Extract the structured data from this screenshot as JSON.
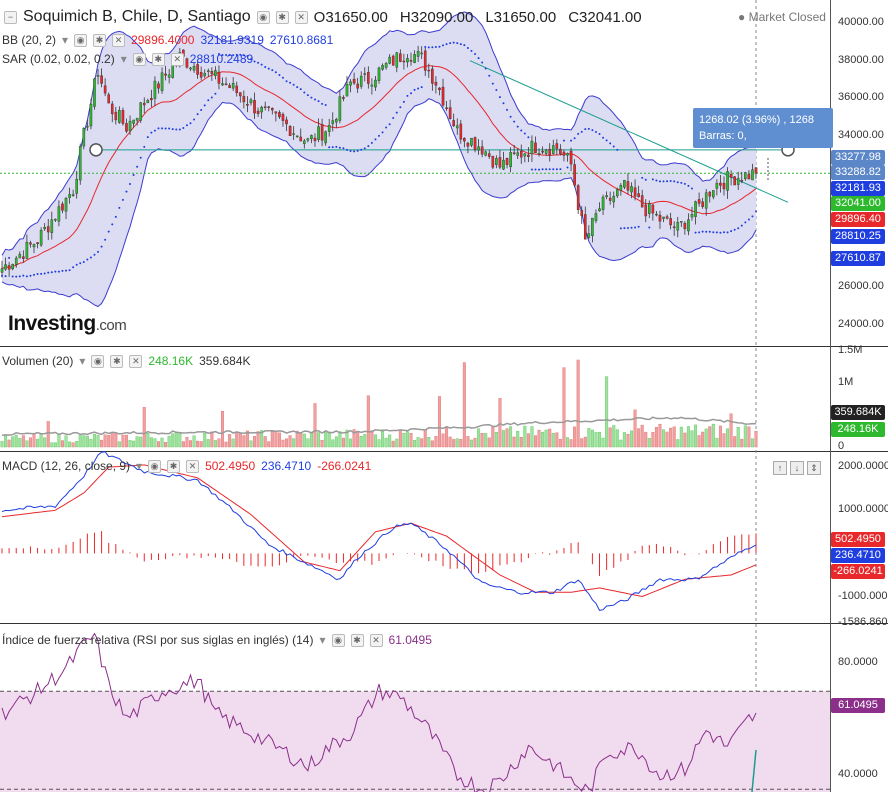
{
  "header": {
    "title": "Soquimich B, Chile, D, Santiago",
    "open": "O31650.00",
    "high": "H32090.00",
    "low": "L31650.00",
    "close": "C32041.00",
    "market_status": "Market Closed"
  },
  "indicators": {
    "bb": {
      "label": "BB (20, 2)",
      "lower": "29896.4000",
      "mid": "32181.9319",
      "upper": "27610.8681"
    },
    "sar": {
      "label": "SAR (0.02, 0.02, 0.2)",
      "value": "28810.2489"
    },
    "volume": {
      "label": "Volumen (20)",
      "v1": "248.16K",
      "v2": "359.684K"
    },
    "macd": {
      "label": "MACD (12, 26, close, 9)",
      "v1": "502.4950",
      "v2": "236.4710",
      "v3": "-266.0241"
    },
    "rsi": {
      "label": "Índice de fuerza relativa (RSI por sus siglas en inglés) (14)",
      "value": "61.0495"
    }
  },
  "tooltip": {
    "line1": "1268.02 (3.96%) , 1268",
    "line2": "Barras: 0,"
  },
  "logo": {
    "main": "Investing",
    "suffix": ".com"
  },
  "axis": {
    "price_ticks": [
      "40000.00",
      "38000.00",
      "36000.00",
      "34000.00",
      "26000.00",
      "24000.00"
    ],
    "price_badges": [
      {
        "text": "33277.98",
        "color": "#5b87c9"
      },
      {
        "text": "33288.82",
        "color": "#5b87c9"
      },
      {
        "text": "32181.93",
        "color": "#1f3ee0"
      },
      {
        "text": "32041.00",
        "color": "#2eb82e"
      },
      {
        "text": "29896.40",
        "color": "#e8282b"
      },
      {
        "text": "28810.25",
        "color": "#1f3ee0"
      },
      {
        "text": "27610.87",
        "color": "#1f3ee0"
      }
    ],
    "vol_ticks": [
      "1.5M",
      "1M",
      "0"
    ],
    "vol_badges": [
      {
        "text": "359.684K",
        "color": "#222"
      },
      {
        "text": "248.16K",
        "color": "#2eb82e"
      }
    ],
    "macd_ticks": [
      "2000.0000",
      "1000.0000",
      "-1000.0000",
      "-1586.8601"
    ],
    "macd_badges": [
      {
        "text": "502.4950",
        "color": "#e8282b"
      },
      {
        "text": "236.4710",
        "color": "#1f3ee0"
      },
      {
        "text": "-266.0241",
        "color": "#e8282b"
      }
    ],
    "rsi_ticks": [
      "80.0000",
      "40.0000"
    ],
    "rsi_badges": [
      {
        "text": "61.0495",
        "color": "#8b2f8b"
      }
    ]
  },
  "colors": {
    "up": "#2eb82e",
    "down": "#e8282b",
    "bb_band": "#3c3ccf",
    "bb_fill": "#dcdcf3",
    "bb_mid": "#e8282b",
    "sar": "#1f3ee0",
    "macd": "#1f3ee0",
    "signal": "#e8282b",
    "rsi": "#8b2f8b",
    "rsi_fill": "#f1dcef",
    "vol_ma": "#999999",
    "trendline": "#1a9e8c"
  },
  "chart_data": {
    "type": "line",
    "price_range": [
      23000,
      41000
    ],
    "macd_range": [
      -1590,
      2350
    ],
    "rsi_range": [
      34,
      94
    ],
    "vol_range": [
      0,
      1500000
    ],
    "close_keypoints": [
      [
        0,
        27000
      ],
      [
        10,
        28500
      ],
      [
        20,
        31200
      ],
      [
        23,
        34000
      ],
      [
        27,
        37500
      ],
      [
        30,
        35600
      ],
      [
        35,
        34500
      ],
      [
        42,
        36300
      ],
      [
        50,
        38200
      ],
      [
        58,
        37300
      ],
      [
        65,
        36500
      ],
      [
        72,
        35400
      ],
      [
        80,
        34600
      ],
      [
        86,
        33700
      ],
      [
        92,
        34500
      ],
      [
        98,
        36800
      ],
      [
        103,
        37000
      ],
      [
        110,
        38000
      ],
      [
        114,
        38500
      ],
      [
        118,
        38100
      ],
      [
        122,
        36900
      ],
      [
        128,
        34300
      ],
      [
        135,
        33400
      ],
      [
        140,
        32400
      ],
      [
        145,
        33000
      ],
      [
        150,
        33500
      ],
      [
        156,
        33400
      ],
      [
        160,
        32500
      ],
      [
        164,
        28400
      ],
      [
        168,
        30200
      ],
      [
        175,
        31300
      ],
      [
        180,
        30300
      ],
      [
        185,
        29600
      ],
      [
        190,
        29100
      ],
      [
        196,
        30300
      ],
      [
        200,
        31400
      ],
      [
        205,
        31800
      ],
      [
        212,
        32041
      ]
    ],
    "macd_keypoints": [
      [
        0,
        1000
      ],
      [
        15,
        1100
      ],
      [
        23,
        1800
      ],
      [
        28,
        2350
      ],
      [
        40,
        1900
      ],
      [
        55,
        1700
      ],
      [
        65,
        1000
      ],
      [
        75,
        200
      ],
      [
        85,
        -200
      ],
      [
        95,
        -600
      ],
      [
        100,
        -100
      ],
      [
        110,
        600
      ],
      [
        115,
        700
      ],
      [
        125,
        100
      ],
      [
        135,
        -700
      ],
      [
        145,
        -900
      ],
      [
        155,
        -900
      ],
      [
        162,
        -600
      ],
      [
        168,
        -1300
      ],
      [
        175,
        -1100
      ],
      [
        185,
        -600
      ],
      [
        195,
        -600
      ],
      [
        205,
        -100
      ],
      [
        212,
        236
      ]
    ],
    "signal_keypoints": [
      [
        0,
        850
      ],
      [
        15,
        1000
      ],
      [
        23,
        1400
      ],
      [
        30,
        2000
      ],
      [
        40,
        2050
      ],
      [
        55,
        1750
      ],
      [
        70,
        900
      ],
      [
        85,
        -200
      ],
      [
        95,
        -400
      ],
      [
        105,
        500
      ],
      [
        115,
        700
      ],
      [
        125,
        400
      ],
      [
        140,
        -500
      ],
      [
        150,
        -900
      ],
      [
        160,
        -900
      ],
      [
        168,
        -800
      ],
      [
        180,
        -1000
      ],
      [
        192,
        -600
      ],
      [
        205,
        -500
      ],
      [
        212,
        -266
      ]
    ],
    "rsi_keypoints": [
      [
        0,
        62
      ],
      [
        10,
        70
      ],
      [
        18,
        78
      ],
      [
        22,
        85
      ],
      [
        26,
        90
      ],
      [
        30,
        72
      ],
      [
        35,
        60
      ],
      [
        45,
        70
      ],
      [
        55,
        74
      ],
      [
        60,
        62
      ],
      [
        70,
        55
      ],
      [
        80,
        48
      ],
      [
        86,
        43
      ],
      [
        92,
        50
      ],
      [
        98,
        55
      ],
      [
        106,
        70
      ],
      [
        112,
        68
      ],
      [
        120,
        56
      ],
      [
        128,
        40
      ],
      [
        135,
        35
      ],
      [
        140,
        38
      ],
      [
        148,
        50
      ],
      [
        155,
        44
      ],
      [
        160,
        38
      ],
      [
        165,
        34
      ],
      [
        170,
        48
      ],
      [
        178,
        50
      ],
      [
        185,
        40
      ],
      [
        192,
        42
      ],
      [
        198,
        56
      ],
      [
        204,
        50
      ],
      [
        210,
        60
      ],
      [
        212,
        61
      ]
    ],
    "volume_peaks": [
      [
        13,
        400000
      ],
      [
        40,
        620000
      ],
      [
        62,
        560000
      ],
      [
        88,
        680000
      ],
      [
        103,
        800000
      ],
      [
        123,
        790000
      ],
      [
        130,
        1320000
      ],
      [
        140,
        760000
      ],
      [
        158,
        1240000
      ],
      [
        162,
        1360000
      ],
      [
        170,
        1100000
      ],
      [
        178,
        580000
      ],
      [
        205,
        520000
      ],
      [
        212,
        248160
      ]
    ],
    "volume_ma_keypoints": [
      [
        0,
        200000
      ],
      [
        50,
        230000
      ],
      [
        100,
        240000
      ],
      [
        130,
        310000
      ],
      [
        150,
        380000
      ],
      [
        170,
        420000
      ],
      [
        190,
        460000
      ],
      [
        212,
        359684
      ]
    ]
  }
}
